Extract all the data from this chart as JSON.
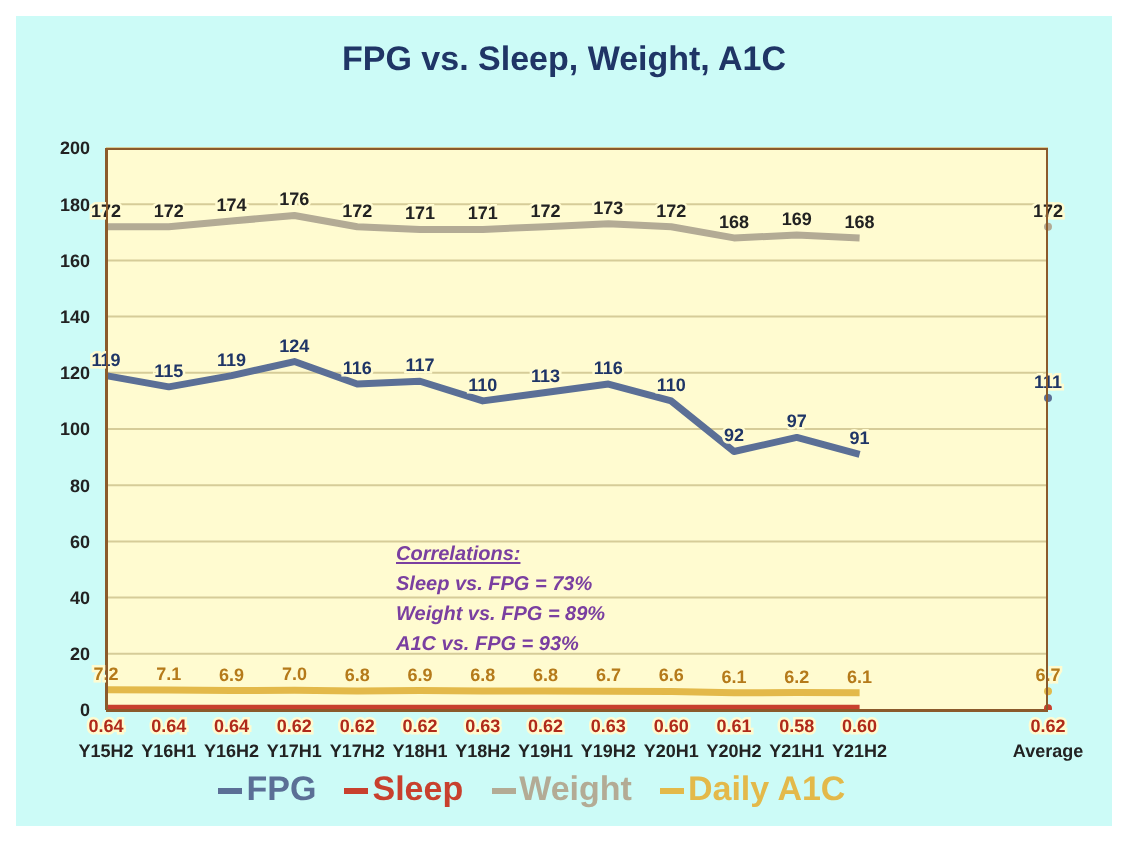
{
  "chart_data": {
    "type": "line",
    "title": "FPG vs. Sleep, Weight, A1C",
    "categories": [
      "Y15H2",
      "Y16H1",
      "Y16H2",
      "Y17H1",
      "Y17H2",
      "Y18H1",
      "Y18H2",
      "Y19H1",
      "Y19H2",
      "Y20H1",
      "Y20H2",
      "Y21H1",
      "Y21H2",
      null,
      null,
      "Average"
    ],
    "series": [
      {
        "name": "FPG",
        "color": "#5b6f96",
        "values": [
          119,
          115,
          119,
          124,
          116,
          117,
          110,
          113,
          116,
          110,
          92,
          97,
          91,
          null,
          null,
          111
        ],
        "value_labels": [
          "119",
          "115",
          "119",
          "124",
          "116",
          "117",
          "110",
          "113",
          "116",
          "110",
          "92",
          "97",
          "91",
          null,
          null,
          "111"
        ]
      },
      {
        "name": "Sleep",
        "color": "#c8402e",
        "values": [
          0.64,
          0.64,
          0.64,
          0.62,
          0.62,
          0.62,
          0.63,
          0.62,
          0.63,
          0.6,
          0.61,
          0.58,
          0.6,
          null,
          null,
          0.62
        ],
        "value_labels": [
          "0.64",
          "0.64",
          "0.64",
          "0.62",
          "0.62",
          "0.62",
          "0.63",
          "0.62",
          "0.63",
          "0.60",
          "0.61",
          "0.58",
          "0.60",
          null,
          null,
          "0.62"
        ]
      },
      {
        "name": "Weight",
        "color": "#b3ab95",
        "values": [
          172,
          172,
          174,
          176,
          172,
          171,
          171,
          172,
          173,
          172,
          168,
          169,
          168,
          null,
          null,
          172
        ],
        "value_labels": [
          "172",
          "172",
          "174",
          "176",
          "172",
          "171",
          "171",
          "172",
          "173",
          "172",
          "168",
          "169",
          "168",
          null,
          null,
          "172"
        ]
      },
      {
        "name": "Daily A1C",
        "color": "#e3b94a",
        "values": [
          7.2,
          7.1,
          6.9,
          7.0,
          6.8,
          6.9,
          6.8,
          6.8,
          6.7,
          6.6,
          6.1,
          6.2,
          6.1,
          null,
          null,
          6.7
        ],
        "value_labels": [
          "7.2",
          "7.1",
          "6.9",
          "7.0",
          "6.8",
          "6.9",
          "6.8",
          "6.8",
          "6.7",
          "6.6",
          "6.1",
          "6.2",
          "6.1",
          null,
          null,
          "6.7"
        ]
      }
    ],
    "ylim": [
      0,
      200
    ],
    "yticks": [
      0,
      20,
      40,
      60,
      80,
      100,
      120,
      140,
      160,
      180,
      200
    ],
    "grid": "y",
    "legend": "bottom",
    "marker": "none",
    "annotations": [
      "Correlations:",
      "Sleep vs. FPG = 73%",
      "Weight vs. FPG = 89%",
      "A1C vs. FPG = 93%"
    ]
  }
}
